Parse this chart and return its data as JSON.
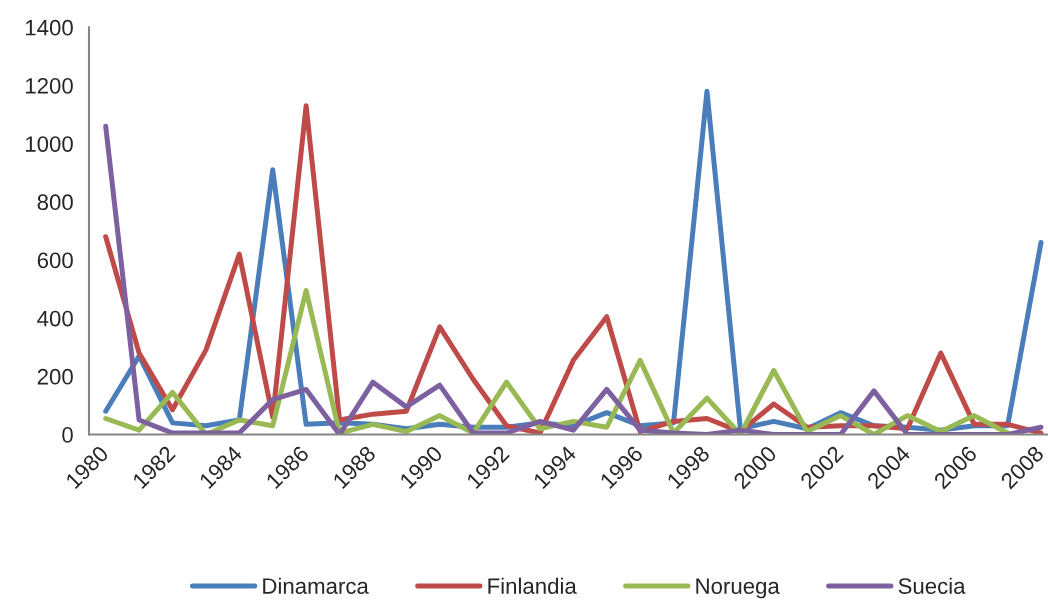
{
  "chart_data": {
    "type": "line",
    "categories": [
      "1980",
      null,
      "1982",
      null,
      "1984",
      null,
      "1986",
      null,
      "1988",
      null,
      "1990",
      null,
      "1992",
      null,
      "1994",
      null,
      "1996",
      null,
      "1998",
      null,
      "2000",
      null,
      "2002",
      null,
      "2004",
      null,
      "2006",
      null,
      "2008"
    ],
    "series": [
      {
        "name": "Dinamarca",
        "color": "#4a7ebb",
        "values": [
          80,
          270,
          40,
          30,
          50,
          910,
          35,
          40,
          35,
          20,
          35,
          25,
          25,
          40,
          30,
          75,
          30,
          40,
          1180,
          20,
          45,
          20,
          75,
          30,
          25,
          15,
          30,
          30,
          660
        ]
      },
      {
        "name": "Finlandia",
        "color": "#be4b48",
        "values": [
          680,
          280,
          85,
          290,
          620,
          60,
          1130,
          50,
          70,
          80,
          370,
          190,
          30,
          5,
          255,
          405,
          10,
          45,
          55,
          10,
          105,
          25,
          30,
          30,
          20,
          280,
          35,
          35,
          5
        ]
      },
      {
        "name": "Noruega",
        "color": "#98b954",
        "values": [
          55,
          15,
          145,
          0,
          50,
          30,
          495,
          5,
          35,
          10,
          65,
          5,
          180,
          20,
          45,
          25,
          255,
          5,
          125,
          0,
          220,
          10,
          65,
          0,
          65,
          10,
          65,
          5,
          null
        ]
      },
      {
        "name": "Suecia",
        "color": "#7d60a0",
        "values": [
          1060,
          50,
          5,
          5,
          5,
          120,
          155,
          0,
          180,
          95,
          170,
          5,
          5,
          45,
          15,
          155,
          15,
          5,
          0,
          15,
          0,
          0,
          0,
          150,
          0,
          0,
          0,
          0,
          25
        ]
      }
    ],
    "ylim": [
      0,
      1400
    ],
    "yticks": [
      0,
      200,
      400,
      600,
      800,
      1000,
      1200,
      1400
    ],
    "grid": false,
    "legend": "bottom"
  }
}
